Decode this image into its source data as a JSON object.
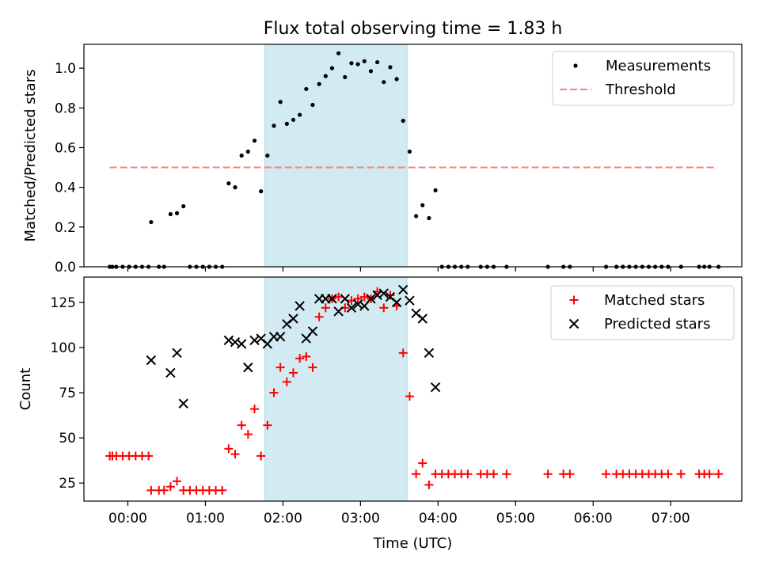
{
  "title": "Flux total observing time = 1.83 h",
  "colors": {
    "measurement": "#000000",
    "threshold": "#ff7f7f",
    "matched": "#ff0000",
    "predicted": "#000000",
    "highlight": "#add8e6"
  },
  "chart_data": [
    {
      "type": "scatter",
      "ylabel": "Matched/Predicted stars",
      "ylim": [
        0,
        1.12
      ],
      "yticks": [
        0.0,
        0.2,
        0.4,
        0.6,
        0.8,
        1.0
      ],
      "ytick_labels": [
        "0.0",
        "0.2",
        "0.4",
        "0.6",
        "0.8",
        "1.0"
      ],
      "highlight_span": [
        "01:46",
        "03:36"
      ],
      "legend": {
        "placement": "top-right",
        "entries": [
          "Measurements",
          "Threshold"
        ]
      },
      "threshold": {
        "name": "Threshold",
        "y": 0.5,
        "x_from": "23:46",
        "x_to": "07:36"
      },
      "series": [
        {
          "name": "Measurements",
          "marker": "dot",
          "points": [
            [
              "23:46",
              0.0
            ],
            [
              "23:48",
              0.0
            ],
            [
              "23:51",
              0.0
            ],
            [
              "23:56",
              0.0
            ],
            [
              "00:01",
              0.0
            ],
            [
              "00:06",
              0.0
            ],
            [
              "00:11",
              0.0
            ],
            [
              "00:16",
              0.0
            ],
            [
              "00:18",
              0.225
            ],
            [
              "00:24",
              0.0
            ],
            [
              "00:28",
              0.0
            ],
            [
              "00:33",
              0.265
            ],
            [
              "00:38",
              0.27
            ],
            [
              "00:43",
              0.305
            ],
            [
              "00:48",
              0.0
            ],
            [
              "00:53",
              0.0
            ],
            [
              "00:58",
              0.0
            ],
            [
              "01:03",
              0.0
            ],
            [
              "01:08",
              0.0
            ],
            [
              "01:13",
              0.0
            ],
            [
              "01:18",
              0.42
            ],
            [
              "01:23",
              0.4
            ],
            [
              "01:28",
              0.56
            ],
            [
              "01:33",
              0.58
            ],
            [
              "01:38",
              0.635
            ],
            [
              "01:43",
              0.38
            ],
            [
              "01:48",
              0.56
            ],
            [
              "01:53",
              0.71
            ],
            [
              "01:58",
              0.83
            ],
            [
              "02:03",
              0.72
            ],
            [
              "02:08",
              0.74
            ],
            [
              "02:13",
              0.765
            ],
            [
              "02:18",
              0.895
            ],
            [
              "02:23",
              0.815
            ],
            [
              "02:28",
              0.92
            ],
            [
              "02:33",
              0.96
            ],
            [
              "02:38",
              1.0
            ],
            [
              "02:43",
              1.075
            ],
            [
              "02:48",
              0.955
            ],
            [
              "02:53",
              1.025
            ],
            [
              "02:58",
              1.02
            ],
            [
              "03:03",
              1.035
            ],
            [
              "03:08",
              0.985
            ],
            [
              "03:13",
              1.03
            ],
            [
              "03:18",
              0.93
            ],
            [
              "03:23",
              1.005
            ],
            [
              "03:28",
              0.945
            ],
            [
              "03:33",
              0.735
            ],
            [
              "03:38",
              0.58
            ],
            [
              "03:43",
              0.255
            ],
            [
              "03:48",
              0.31
            ],
            [
              "03:53",
              0.245
            ],
            [
              "03:58",
              0.385
            ],
            [
              "04:03",
              0.0
            ],
            [
              "04:08",
              0.0
            ],
            [
              "04:13",
              0.0
            ],
            [
              "04:18",
              0.0
            ],
            [
              "04:23",
              0.0
            ],
            [
              "04:33",
              0.0
            ],
            [
              "04:38",
              0.0
            ],
            [
              "04:43",
              0.0
            ],
            [
              "04:53",
              0.0
            ],
            [
              "05:25",
              0.0
            ],
            [
              "05:37",
              0.0
            ],
            [
              "05:42",
              0.0
            ],
            [
              "06:10",
              0.0
            ],
            [
              "06:18",
              0.0
            ],
            [
              "06:23",
              0.0
            ],
            [
              "06:28",
              0.0
            ],
            [
              "06:33",
              0.0
            ],
            [
              "06:38",
              0.0
            ],
            [
              "06:43",
              0.0
            ],
            [
              "06:48",
              0.0
            ],
            [
              "06:53",
              0.0
            ],
            [
              "06:58",
              0.0
            ],
            [
              "07:08",
              0.0
            ],
            [
              "07:22",
              0.0
            ],
            [
              "07:26",
              0.0
            ],
            [
              "07:30",
              0.0
            ],
            [
              "07:37",
              0.0
            ]
          ]
        }
      ]
    },
    {
      "type": "scatter",
      "xlabel": "Time (UTC)",
      "ylabel": "Count",
      "ylim": [
        15,
        139
      ],
      "yticks": [
        25,
        50,
        75,
        100,
        125
      ],
      "ytick_labels": [
        "25",
        "50",
        "75",
        "100",
        "125"
      ],
      "xlim": [
        "23:26",
        "07:55"
      ],
      "xticks": [
        "00:00",
        "01:00",
        "02:00",
        "03:00",
        "04:00",
        "05:00",
        "06:00",
        "07:00"
      ],
      "xtick_labels": [
        "00:00",
        "01:00",
        "02:00",
        "03:00",
        "04:00",
        "05:00",
        "06:00",
        "07:00"
      ],
      "highlight_span": [
        "01:46",
        "03:36"
      ],
      "legend": {
        "placement": "top-right",
        "entries": [
          "Matched stars",
          "Predicted stars"
        ]
      },
      "series": [
        {
          "name": "Matched stars",
          "marker": "plus",
          "points": [
            [
              "23:46",
              40
            ],
            [
              "23:48",
              40
            ],
            [
              "23:51",
              40
            ],
            [
              "23:56",
              40
            ],
            [
              "00:01",
              40
            ],
            [
              "00:06",
              40
            ],
            [
              "00:11",
              40
            ],
            [
              "00:16",
              40
            ],
            [
              "00:18",
              21
            ],
            [
              "00:24",
              21
            ],
            [
              "00:28",
              21
            ],
            [
              "00:33",
              23
            ],
            [
              "00:38",
              26
            ],
            [
              "00:43",
              21
            ],
            [
              "00:48",
              21
            ],
            [
              "00:53",
              21
            ],
            [
              "00:58",
              21
            ],
            [
              "01:03",
              21
            ],
            [
              "01:08",
              21
            ],
            [
              "01:13",
              21
            ],
            [
              "01:18",
              44
            ],
            [
              "01:23",
              41
            ],
            [
              "01:28",
              57
            ],
            [
              "01:33",
              52
            ],
            [
              "01:38",
              66
            ],
            [
              "01:43",
              40
            ],
            [
              "01:48",
              57
            ],
            [
              "01:53",
              75
            ],
            [
              "01:58",
              89
            ],
            [
              "02:03",
              81
            ],
            [
              "02:08",
              86
            ],
            [
              "02:13",
              94
            ],
            [
              "02:18",
              95
            ],
            [
              "02:23",
              89
            ],
            [
              "02:28",
              117
            ],
            [
              "02:33",
              122
            ],
            [
              "02:38",
              127
            ],
            [
              "02:43",
              128
            ],
            [
              "02:48",
              122
            ],
            [
              "02:53",
              126
            ],
            [
              "02:58",
              127
            ],
            [
              "03:03",
              128
            ],
            [
              "03:08",
              127
            ],
            [
              "03:13",
              131
            ],
            [
              "03:18",
              122
            ],
            [
              "03:23",
              129
            ],
            [
              "03:28",
              123
            ],
            [
              "03:33",
              97
            ],
            [
              "03:38",
              73
            ],
            [
              "03:43",
              30
            ],
            [
              "03:48",
              36
            ],
            [
              "03:53",
              24
            ],
            [
              "03:58",
              30
            ],
            [
              "04:03",
              30
            ],
            [
              "04:08",
              30
            ],
            [
              "04:13",
              30
            ],
            [
              "04:18",
              30
            ],
            [
              "04:23",
              30
            ],
            [
              "04:33",
              30
            ],
            [
              "04:38",
              30
            ],
            [
              "04:43",
              30
            ],
            [
              "04:53",
              30
            ],
            [
              "05:25",
              30
            ],
            [
              "05:37",
              30
            ],
            [
              "05:42",
              30
            ],
            [
              "06:10",
              30
            ],
            [
              "06:18",
              30
            ],
            [
              "06:23",
              30
            ],
            [
              "06:28",
              30
            ],
            [
              "06:33",
              30
            ],
            [
              "06:38",
              30
            ],
            [
              "06:43",
              30
            ],
            [
              "06:48",
              30
            ],
            [
              "06:53",
              30
            ],
            [
              "06:58",
              30
            ],
            [
              "07:08",
              30
            ],
            [
              "07:22",
              30
            ],
            [
              "07:26",
              30
            ],
            [
              "07:30",
              30
            ],
            [
              "07:37",
              30
            ]
          ]
        },
        {
          "name": "Predicted stars",
          "marker": "x",
          "points": [
            [
              "00:18",
              93
            ],
            [
              "00:33",
              86
            ],
            [
              "00:38",
              97
            ],
            [
              "00:43",
              69
            ],
            [
              "01:18",
              104
            ],
            [
              "01:23",
              103
            ],
            [
              "01:28",
              102
            ],
            [
              "01:33",
              89
            ],
            [
              "01:38",
              104
            ],
            [
              "01:43",
              105
            ],
            [
              "01:48",
              102
            ],
            [
              "01:53",
              106
            ],
            [
              "01:58",
              106
            ],
            [
              "02:03",
              113
            ],
            [
              "02:08",
              116
            ],
            [
              "02:13",
              123
            ],
            [
              "02:18",
              105
            ],
            [
              "02:23",
              109
            ],
            [
              "02:28",
              127
            ],
            [
              "02:33",
              127
            ],
            [
              "02:38",
              127
            ],
            [
              "02:43",
              120
            ],
            [
              "02:48",
              127
            ],
            [
              "02:53",
              122
            ],
            [
              "02:58",
              124
            ],
            [
              "03:03",
              123
            ],
            [
              "03:08",
              127
            ],
            [
              "03:13",
              129
            ],
            [
              "03:18",
              130
            ],
            [
              "03:23",
              128
            ],
            [
              "03:28",
              125
            ],
            [
              "03:33",
              132
            ],
            [
              "03:38",
              126
            ],
            [
              "03:43",
              119
            ],
            [
              "03:48",
              116
            ],
            [
              "03:53",
              97
            ],
            [
              "03:58",
              78
            ]
          ]
        }
      ]
    }
  ]
}
